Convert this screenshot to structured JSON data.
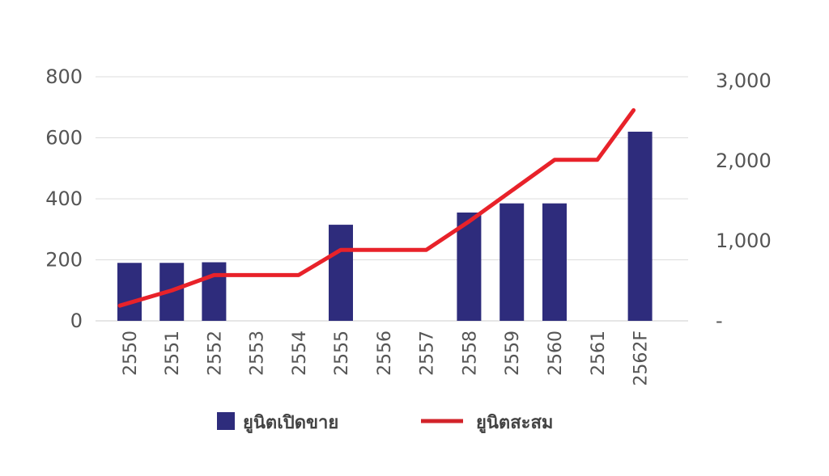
{
  "chart_data": {
    "type": "bar+line",
    "categories": [
      "2550",
      "2551",
      "2552",
      "2553",
      "2554",
      "2555",
      "2556",
      "2557",
      "2558",
      "2559",
      "2560",
      "2561",
      "2562F"
    ],
    "series": [
      {
        "name": "ยูนิตเปิดขาย",
        "type": "bar",
        "axis": "left",
        "color": "#2E2C7C",
        "values": [
          190,
          190,
          192,
          0,
          0,
          315,
          0,
          0,
          355,
          385,
          385,
          0,
          620
        ]
      },
      {
        "name": "ยูนิตสะสม",
        "type": "line",
        "axis": "right",
        "color": "#E8222A",
        "values": [
          190,
          380,
          572,
          572,
          572,
          887,
          887,
          887,
          1242,
          1627,
          2012,
          2012,
          2632
        ]
      }
    ],
    "y_left": {
      "ylim": [
        0,
        800
      ],
      "ticks": [
        "0",
        "200",
        "400",
        "600",
        "800"
      ]
    },
    "y_right": {
      "ylim": [
        0,
        3000
      ],
      "ticks": [
        "-",
        "1,000",
        "2,000",
        "3,000"
      ]
    },
    "grid": true,
    "legend": "bottom"
  }
}
